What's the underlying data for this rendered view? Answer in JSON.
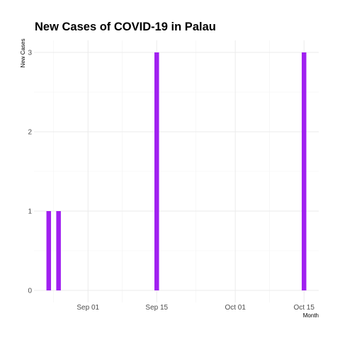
{
  "chart_data": {
    "type": "bar",
    "title": "New Cases of COVID-19 in Palau",
    "xlabel": "Month",
    "ylabel": "New Cases",
    "x": [
      "2021-08-24",
      "2021-08-26",
      "2021-09-15",
      "2021-10-15"
    ],
    "values": [
      1,
      1,
      3,
      3
    ],
    "xlim": [
      "2021-08-21",
      "2021-10-18"
    ],
    "ylim": [
      0,
      3
    ],
    "y_ticks": [
      0,
      1,
      2,
      3
    ],
    "x_ticks": [
      {
        "date": "2021-09-01",
        "label": "Sep 01"
      },
      {
        "date": "2021-09-15",
        "label": "Sep 15"
      },
      {
        "date": "2021-10-01",
        "label": "Oct 01"
      },
      {
        "date": "2021-10-15",
        "label": "Oct 15"
      }
    ],
    "grid": true,
    "bar_color": "#a020f0"
  }
}
